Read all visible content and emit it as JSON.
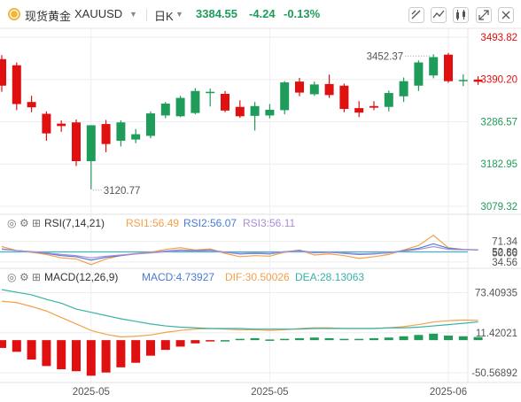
{
  "header": {
    "symbol_icon": "gold-coin-icon",
    "name": "现货黄金",
    "code": "XAUUSD",
    "period": "日K",
    "price": "3384.55",
    "change": "-4.24",
    "change_pct": "-0.13%"
  },
  "toolbar_icons": [
    "draw-tool-icon",
    "indicator-icon",
    "candle-style-icon",
    "expand-icon",
    "close-icon"
  ],
  "colors": {
    "up": "#e01010",
    "down": "#1f9c5a",
    "rsi1": "#f5a04a",
    "rsi2": "#4a7bd6",
    "rsi3": "#a78fd6",
    "macd": "#4a7bd6",
    "dif": "#f5a04a",
    "dea": "#35b3a8"
  },
  "chart_data": [
    {
      "type": "candlestick",
      "y_ticks": [
        "3493.82",
        "3390.20",
        "3286.57",
        "3182.95",
        "3079.32"
      ],
      "ylim": [
        3079.32,
        3493.82
      ],
      "annotations": [
        {
          "label": "3452.37",
          "candle": 29
        },
        {
          "label": "3120.77",
          "candle": 6
        }
      ],
      "x_ticks": [
        {
          "label": "2025-05",
          "candle": 6
        },
        {
          "label": "2025-05",
          "candle": 18
        },
        {
          "label": "2025-06",
          "candle": 30
        }
      ],
      "candles": [
        {
          "o": 3440,
          "h": 3450,
          "l": 3360,
          "c": 3375
        },
        {
          "o": 3425,
          "h": 3432,
          "l": 3315,
          "c": 3330
        },
        {
          "o": 3335,
          "h": 3350,
          "l": 3310,
          "c": 3322
        },
        {
          "o": 3306,
          "h": 3312,
          "l": 3240,
          "c": 3258
        },
        {
          "o": 3282,
          "h": 3290,
          "l": 3262,
          "c": 3276
        },
        {
          "o": 3285,
          "h": 3292,
          "l": 3178,
          "c": 3190
        },
        {
          "o": 3190,
          "h": 3278,
          "l": 3121,
          "c": 3278
        },
        {
          "o": 3281,
          "h": 3291,
          "l": 3212,
          "c": 3232
        },
        {
          "o": 3240,
          "h": 3290,
          "l": 3226,
          "c": 3285
        },
        {
          "o": 3243,
          "h": 3269,
          "l": 3234,
          "c": 3256
        },
        {
          "o": 3252,
          "h": 3312,
          "l": 3246,
          "c": 3307
        },
        {
          "o": 3302,
          "h": 3335,
          "l": 3295,
          "c": 3331
        },
        {
          "o": 3300,
          "h": 3350,
          "l": 3298,
          "c": 3345
        },
        {
          "o": 3308,
          "h": 3369,
          "l": 3305,
          "c": 3362
        },
        {
          "o": 3358,
          "h": 3368,
          "l": 3324,
          "c": 3360
        },
        {
          "o": 3355,
          "h": 3362,
          "l": 3310,
          "c": 3314
        },
        {
          "o": 3323,
          "h": 3339,
          "l": 3296,
          "c": 3300
        },
        {
          "o": 3301,
          "h": 3335,
          "l": 3265,
          "c": 3325
        },
        {
          "o": 3302,
          "h": 3330,
          "l": 3295,
          "c": 3316
        },
        {
          "o": 3315,
          "h": 3386,
          "l": 3305,
          "c": 3383
        },
        {
          "o": 3385,
          "h": 3394,
          "l": 3349,
          "c": 3358
        },
        {
          "o": 3354,
          "h": 3385,
          "l": 3350,
          "c": 3378
        },
        {
          "o": 3379,
          "h": 3402,
          "l": 3345,
          "c": 3352
        },
        {
          "o": 3375,
          "h": 3380,
          "l": 3310,
          "c": 3318
        },
        {
          "o": 3320,
          "h": 3337,
          "l": 3298,
          "c": 3309
        },
        {
          "o": 3325,
          "h": 3337,
          "l": 3315,
          "c": 3321
        },
        {
          "o": 3323,
          "h": 3363,
          "l": 3312,
          "c": 3357
        },
        {
          "o": 3349,
          "h": 3395,
          "l": 3335,
          "c": 3386
        },
        {
          "o": 3375,
          "h": 3437,
          "l": 3362,
          "c": 3432
        },
        {
          "o": 3400,
          "h": 3452,
          "l": 3393,
          "c": 3445
        },
        {
          "o": 3451,
          "h": 3455,
          "l": 3382,
          "c": 3386
        },
        {
          "o": 3386,
          "h": 3403,
          "l": 3374,
          "c": 3389
        },
        {
          "o": 3390,
          "h": 3398,
          "l": 3377,
          "c": 3384.55
        }
      ]
    },
    {
      "type": "line",
      "indicator": "RSI(7,14,21)",
      "legend": [
        "RSI1:56.49",
        "RSI2:56.07",
        "RSI3:56.11"
      ],
      "y_ticks": [
        "71.34",
        "52.80",
        "50.66",
        "34.56"
      ],
      "ylim": [
        25,
        88
      ],
      "reference_line": 52.8,
      "series": [
        {
          "name": "RSI1",
          "values": [
            62,
            55,
            52,
            48,
            42,
            40,
            30,
            40,
            46,
            50,
            52,
            57,
            60,
            56,
            58,
            50,
            44,
            46,
            45,
            52,
            56,
            47,
            49,
            46,
            41,
            44,
            48,
            56,
            64,
            82,
            60,
            57,
            56.49
          ]
        },
        {
          "name": "RSI2",
          "values": [
            58,
            55,
            53,
            50,
            46,
            44,
            38,
            43,
            46,
            49,
            51,
            54,
            56,
            55,
            56,
            52,
            49,
            50,
            49,
            53,
            55,
            51,
            52,
            50,
            48,
            49,
            51,
            55,
            59,
            67,
            59,
            57,
            56.07
          ]
        },
        {
          "name": "RSI3",
          "values": [
            57,
            55,
            53,
            51,
            48,
            46,
            42,
            45,
            47,
            49,
            51,
            53,
            55,
            54,
            55,
            52,
            50,
            51,
            50,
            53,
            54,
            51,
            52,
            51,
            49,
            50,
            51,
            54,
            57,
            62,
            57,
            56.5,
            56.11
          ]
        }
      ]
    },
    {
      "type": "bar+line",
      "indicator": "MACD(12,26,9)",
      "legend": [
        "MACD:4.73927",
        "DIF:30.50026",
        "DEA:28.13063"
      ],
      "y_ticks": [
        "73.40935",
        "11.42021",
        "-50.56892"
      ],
      "ylim": [
        -60,
        85
      ],
      "macd": [
        -12,
        -18,
        -30,
        -40,
        -45,
        -48,
        -55,
        -50,
        -42,
        -35,
        -24,
        -15,
        -10,
        -5,
        -2,
        0,
        2,
        3,
        1,
        2,
        3,
        4,
        3,
        2,
        2,
        3,
        4,
        6,
        8,
        10,
        7,
        6,
        4.74
      ],
      "series": [
        {
          "name": "DIF",
          "values": [
            60,
            58,
            52,
            45,
            35,
            25,
            15,
            9,
            5,
            6,
            8,
            12,
            15,
            17,
            18,
            17,
            16,
            16,
            15,
            16,
            18,
            19,
            19,
            18,
            18,
            18,
            19,
            21,
            24,
            28,
            30,
            31,
            30.5
          ]
        },
        {
          "name": "DEA",
          "values": [
            78,
            74,
            70,
            63,
            57,
            48,
            43,
            38,
            33,
            29,
            25,
            22,
            20,
            19,
            18,
            18,
            18,
            17,
            17,
            17,
            17,
            18,
            18,
            18,
            18,
            18,
            19,
            19,
            20,
            22,
            24,
            26,
            28.13
          ]
        }
      ]
    }
  ]
}
